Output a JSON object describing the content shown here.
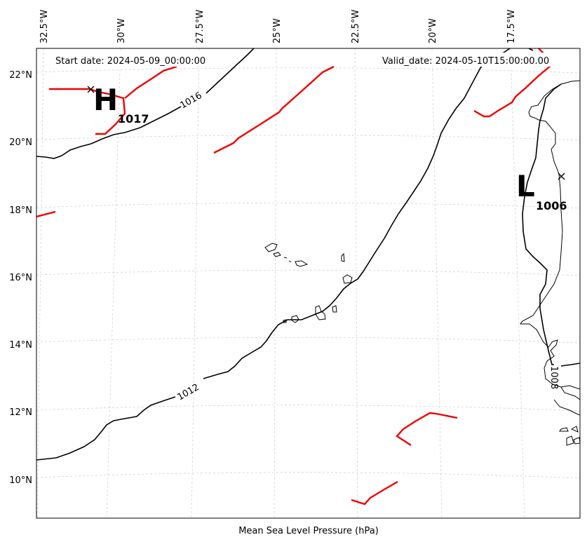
{
  "map": {
    "caption": "Mean Sea Level Pressure (hPa)",
    "start_date": "Start date: 2024-05-09_00:00:00",
    "valid_date": "Valid_date: 2024-05-10T15:00:00.00",
    "lon_labels": [
      "32.5°W",
      "30°W",
      "27.5°W",
      "25°W",
      "22.5°W",
      "20°W",
      "17.5°W"
    ],
    "lat_labels": [
      "22°N",
      "20°N",
      "18°N",
      "16°N",
      "14°N",
      "12°N",
      "10°N"
    ],
    "high": {
      "letter": "H",
      "value": "1017"
    },
    "low": {
      "letter": "L",
      "value": "1006"
    },
    "isobar_labels": {
      "i1016": "1016",
      "i1012": "1012",
      "i1008": "1008"
    },
    "colors": {
      "isobar": "#000000",
      "front": "#ee0000",
      "grid": "#cccccc",
      "coast": "#000000"
    }
  }
}
